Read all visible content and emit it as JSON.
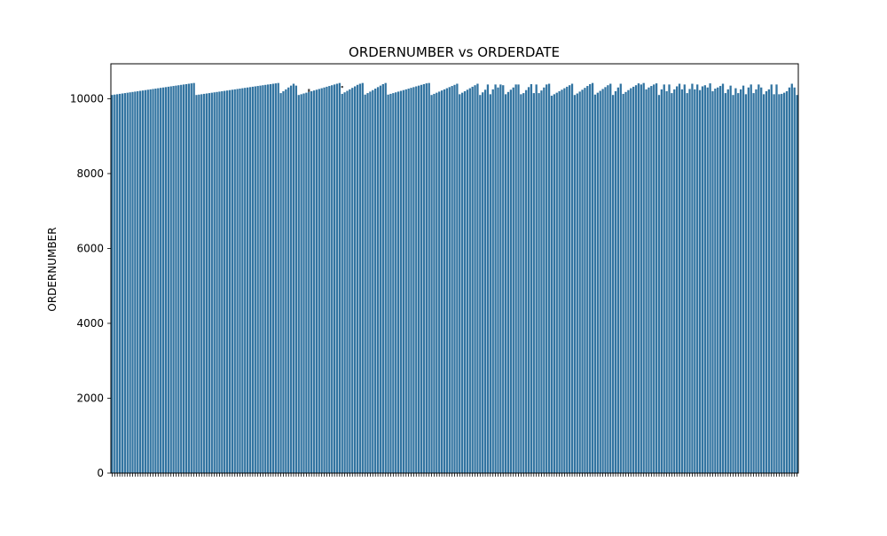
{
  "chart_data": {
    "type": "bar",
    "title": "ORDERNUMBER vs ORDERDATE",
    "xlabel": "",
    "ylabel": "ORDERNUMBER",
    "ylim": [
      0,
      10933
    ],
    "yticks": [
      0,
      2000,
      4000,
      6000,
      8000,
      10000
    ],
    "x_tick_labels_legible": false,
    "bar_color": "#3274a1",
    "error_bar_color": "#424242",
    "series": [
      {
        "values": [
          10100,
          10110,
          10120,
          10130,
          10140,
          10150,
          10160,
          10170,
          10180,
          10190,
          10200,
          10210,
          10220,
          10230,
          10240,
          10250,
          10260,
          10270,
          10280,
          10290,
          10300,
          10310,
          10320,
          10330,
          10340,
          10350,
          10360,
          10370,
          10380,
          10390,
          10400,
          10410,
          10420,
          10100,
          10110,
          10120,
          10130,
          10140,
          10150,
          10160,
          10170,
          10180,
          10190,
          10200,
          10210,
          10220,
          10230,
          10240,
          10250,
          10260,
          10270,
          10280,
          10290,
          10300,
          10310,
          10320,
          10330,
          10340,
          10350,
          10360,
          10370,
          10380,
          10390,
          10400,
          10410,
          10420,
          10150,
          10200,
          10250,
          10300,
          10350,
          10400,
          10350,
          10100,
          10120,
          10140,
          10160,
          10180,
          10200,
          10220,
          10240,
          10260,
          10280,
          10300,
          10320,
          10340,
          10360,
          10380,
          10400,
          10420,
          10130,
          10170,
          10210,
          10250,
          10290,
          10330,
          10370,
          10400,
          10420,
          10110,
          10150,
          10190,
          10230,
          10270,
          10310,
          10350,
          10390,
          10420,
          10110,
          10130,
          10150,
          10170,
          10190,
          10210,
          10230,
          10250,
          10270,
          10290,
          10310,
          10330,
          10350,
          10370,
          10390,
          10410,
          10420,
          10100,
          10130,
          10160,
          10190,
          10220,
          10250,
          10280,
          10310,
          10340,
          10370,
          10400,
          10120,
          10160,
          10200,
          10240,
          10280,
          10320,
          10360,
          10400,
          10100,
          10170,
          10240,
          10380,
          10120,
          10250,
          10380,
          10300,
          10380,
          10360,
          10120,
          10180,
          10240,
          10300,
          10380,
          10380,
          10120,
          10150,
          10230,
          10310,
          10390,
          10150,
          10380,
          10150,
          10220,
          10300,
          10380,
          10400,
          10080,
          10120,
          10160,
          10200,
          10240,
          10280,
          10320,
          10360,
          10400,
          10100,
          10140,
          10190,
          10240,
          10290,
          10340,
          10390,
          10420,
          10110,
          10160,
          10210,
          10260,
          10310,
          10360,
          10400,
          10100,
          10200,
          10300,
          10400,
          10130,
          10180,
          10230,
          10280,
          10320,
          10360,
          10410,
          10380,
          10420,
          10250,
          10300,
          10340,
          10380,
          10410,
          10100,
          10250,
          10380,
          10200,
          10380,
          10150,
          10250,
          10330,
          10400,
          10250,
          10380,
          10150,
          10260,
          10400,
          10250,
          10380,
          10230,
          10330,
          10360,
          10300,
          10410,
          10200,
          10270,
          10300,
          10340,
          10400,
          10150,
          10250,
          10350,
          10100,
          10280,
          10150,
          10250,
          10350,
          10120,
          10300,
          10380,
          10150,
          10250,
          10380,
          10300,
          10120,
          10200,
          10250,
          10380,
          10120,
          10380,
          10120,
          10130,
          10160,
          10200,
          10300,
          10400,
          10300,
          10100
        ],
        "error_bars": [
          {
            "index": 77,
            "low": 10180,
            "high": 10260
          },
          {
            "index": 90,
            "low": 10290,
            "high": 10340
          }
        ]
      }
    ]
  }
}
